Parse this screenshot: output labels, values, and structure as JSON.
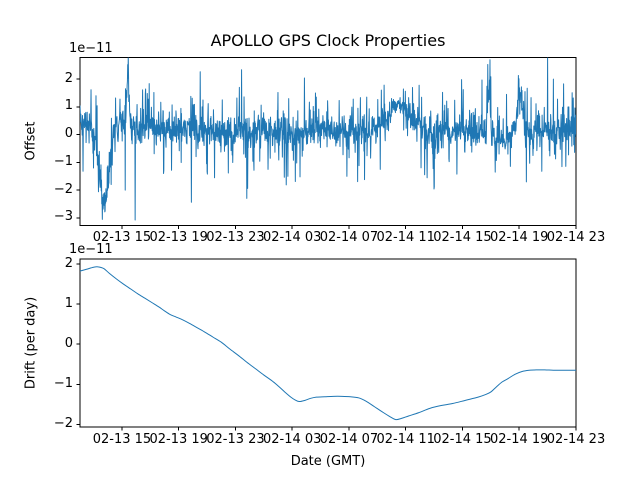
{
  "figure": {
    "background": "#ffffff",
    "text_color": "#000000",
    "line_color": "#1f77b4"
  },
  "chart_data": [
    {
      "type": "line",
      "title": "APOLLO GPS Clock Properties",
      "ylabel": "Offset",
      "offset_label": "1e−11",
      "ylim": [
        -3.275,
        2.775
      ],
      "yticks": [
        2,
        1,
        0,
        -1,
        -2,
        -3
      ],
      "xlim_hours": [
        12.04,
        47.0
      ],
      "xtick_hours": [
        15,
        19,
        23,
        27,
        31,
        35,
        39,
        43,
        47
      ],
      "xtick_labels": [
        "02-13 15",
        "02-13 19",
        "02-13 23",
        "02-14 03",
        "02-14 07",
        "02-14 11",
        "02-14 15",
        "02-14 19",
        "02-14 23"
      ],
      "grid": false,
      "legend": null,
      "line_color": "#1f77b4",
      "series": {
        "kind": "seeded_noise",
        "n": 1800,
        "seed": 20240213,
        "base_mean": 0.12,
        "noise_linear": 0.3,
        "noise_cubic": 0.05,
        "bumps": [
          [
            12.3,
            0.5,
            0.3
          ],
          [
            13.75,
            0.32,
            -2.7
          ],
          [
            14.7,
            0.3,
            0.4
          ],
          [
            15.42,
            0.09,
            2.0
          ],
          [
            16.9,
            0.7,
            0.28
          ],
          [
            19.6,
            0.5,
            0.22
          ],
          [
            27.0,
            0.3,
            -0.15
          ],
          [
            34.5,
            0.75,
            0.95
          ],
          [
            37.0,
            0.08,
            -1.2
          ],
          [
            40.85,
            0.1,
            1.5
          ],
          [
            41.9,
            0.35,
            -0.4
          ],
          [
            43.05,
            0.18,
            1.2
          ],
          [
            46.9,
            0.25,
            0.35
          ]
        ],
        "smooth": [
          [
            34.5,
            0.8,
            0.5
          ]
        ],
        "spikes": [
          [
            13.62,
            -3.05
          ],
          [
            15.4,
            2.52
          ],
          [
            14.55,
            1.32
          ],
          [
            14.85,
            1.28
          ],
          [
            16.65,
            1.48
          ],
          [
            17.25,
            1.52
          ],
          [
            18.5,
            -1.28
          ],
          [
            19.85,
            1.38
          ],
          [
            20.7,
            1.25
          ],
          [
            21.52,
            -1.55
          ],
          [
            22.5,
            -1.38
          ],
          [
            23.1,
            1.32
          ],
          [
            24.3,
            -1.28
          ],
          [
            25.3,
            -1.25
          ],
          [
            26.0,
            1.52
          ],
          [
            26.7,
            -1.5
          ],
          [
            27.55,
            -1.52
          ],
          [
            28.7,
            1.35
          ],
          [
            29.5,
            1.22
          ],
          [
            30.85,
            -1.5
          ],
          [
            31.3,
            1.28
          ],
          [
            32.1,
            -1.62
          ],
          [
            33.2,
            -1.25
          ],
          [
            34.0,
            1.3
          ],
          [
            35.95,
            1.78
          ],
          [
            36.5,
            -1.55
          ],
          [
            37.02,
            -1.88
          ],
          [
            38.6,
            -1.42
          ],
          [
            39.05,
            1.62
          ],
          [
            41.3,
            -1.35
          ],
          [
            42.1,
            1.45
          ],
          [
            43.15,
            1.72
          ],
          [
            43.4,
            1.55
          ],
          [
            44.6,
            -1.32
          ],
          [
            45.7,
            1.28
          ],
          [
            46.0,
            -1.15
          ],
          [
            46.5,
            1.0
          ]
        ]
      }
    },
    {
      "type": "line",
      "title": "",
      "ylabel": "Drift (per day)",
      "xlabel": "Date (GMT)",
      "offset_label": "1e−11",
      "ylim": [
        -2.07,
        2.12
      ],
      "yticks": [
        2,
        1,
        0,
        -1,
        -2
      ],
      "xlim_hours": [
        12.04,
        47.0
      ],
      "xtick_hours": [
        15,
        19,
        23,
        27,
        31,
        35,
        39,
        43,
        47
      ],
      "xtick_labels": [
        "02-13 15",
        "02-13 19",
        "02-13 23",
        "02-14 03",
        "02-14 07",
        "02-14 11",
        "02-14 15",
        "02-14 19",
        "02-14 23"
      ],
      "grid": false,
      "legend": null,
      "line_color": "#1f77b4",
      "points": [
        [
          12.0,
          1.82
        ],
        [
          12.5,
          1.87
        ],
        [
          13.0,
          1.92
        ],
        [
          13.3,
          1.93
        ],
        [
          13.7,
          1.89
        ],
        [
          14.1,
          1.77
        ],
        [
          14.6,
          1.63
        ],
        [
          15.1,
          1.5
        ],
        [
          15.6,
          1.38
        ],
        [
          16.1,
          1.26
        ],
        [
          16.6,
          1.15
        ],
        [
          17.1,
          1.04
        ],
        [
          17.6,
          0.93
        ],
        [
          18.0,
          0.83
        ],
        [
          18.4,
          0.74
        ],
        [
          18.8,
          0.68
        ],
        [
          19.2,
          0.62
        ],
        [
          19.7,
          0.53
        ],
        [
          20.2,
          0.43
        ],
        [
          20.8,
          0.31
        ],
        [
          21.4,
          0.18
        ],
        [
          22.0,
          0.05
        ],
        [
          22.6,
          -0.12
        ],
        [
          23.2,
          -0.28
        ],
        [
          23.8,
          -0.45
        ],
        [
          24.4,
          -0.61
        ],
        [
          25.0,
          -0.77
        ],
        [
          25.6,
          -0.92
        ],
        [
          26.1,
          -1.07
        ],
        [
          26.5,
          -1.2
        ],
        [
          26.9,
          -1.32
        ],
        [
          27.2,
          -1.39
        ],
        [
          27.5,
          -1.43
        ],
        [
          27.9,
          -1.4
        ],
        [
          28.3,
          -1.35
        ],
        [
          28.7,
          -1.32
        ],
        [
          29.3,
          -1.31
        ],
        [
          29.9,
          -1.3
        ],
        [
          30.5,
          -1.3
        ],
        [
          31.1,
          -1.31
        ],
        [
          31.7,
          -1.34
        ],
        [
          32.2,
          -1.42
        ],
        [
          32.8,
          -1.56
        ],
        [
          33.4,
          -1.7
        ],
        [
          33.9,
          -1.81
        ],
        [
          34.3,
          -1.88
        ],
        [
          34.7,
          -1.85
        ],
        [
          35.2,
          -1.79
        ],
        [
          35.9,
          -1.71
        ],
        [
          36.7,
          -1.6
        ],
        [
          37.5,
          -1.53
        ],
        [
          38.3,
          -1.48
        ],
        [
          39.2,
          -1.4
        ],
        [
          40.1,
          -1.32
        ],
        [
          40.6,
          -1.26
        ],
        [
          41.0,
          -1.19
        ],
        [
          41.4,
          -1.06
        ],
        [
          41.8,
          -0.94
        ],
        [
          42.2,
          -0.86
        ],
        [
          42.7,
          -0.75
        ],
        [
          43.2,
          -0.68
        ],
        [
          43.7,
          -0.65
        ],
        [
          44.2,
          -0.64
        ],
        [
          44.8,
          -0.64
        ],
        [
          45.4,
          -0.65
        ],
        [
          46.0,
          -0.65
        ],
        [
          46.5,
          -0.65
        ],
        [
          47.0,
          -0.65
        ]
      ]
    }
  ]
}
